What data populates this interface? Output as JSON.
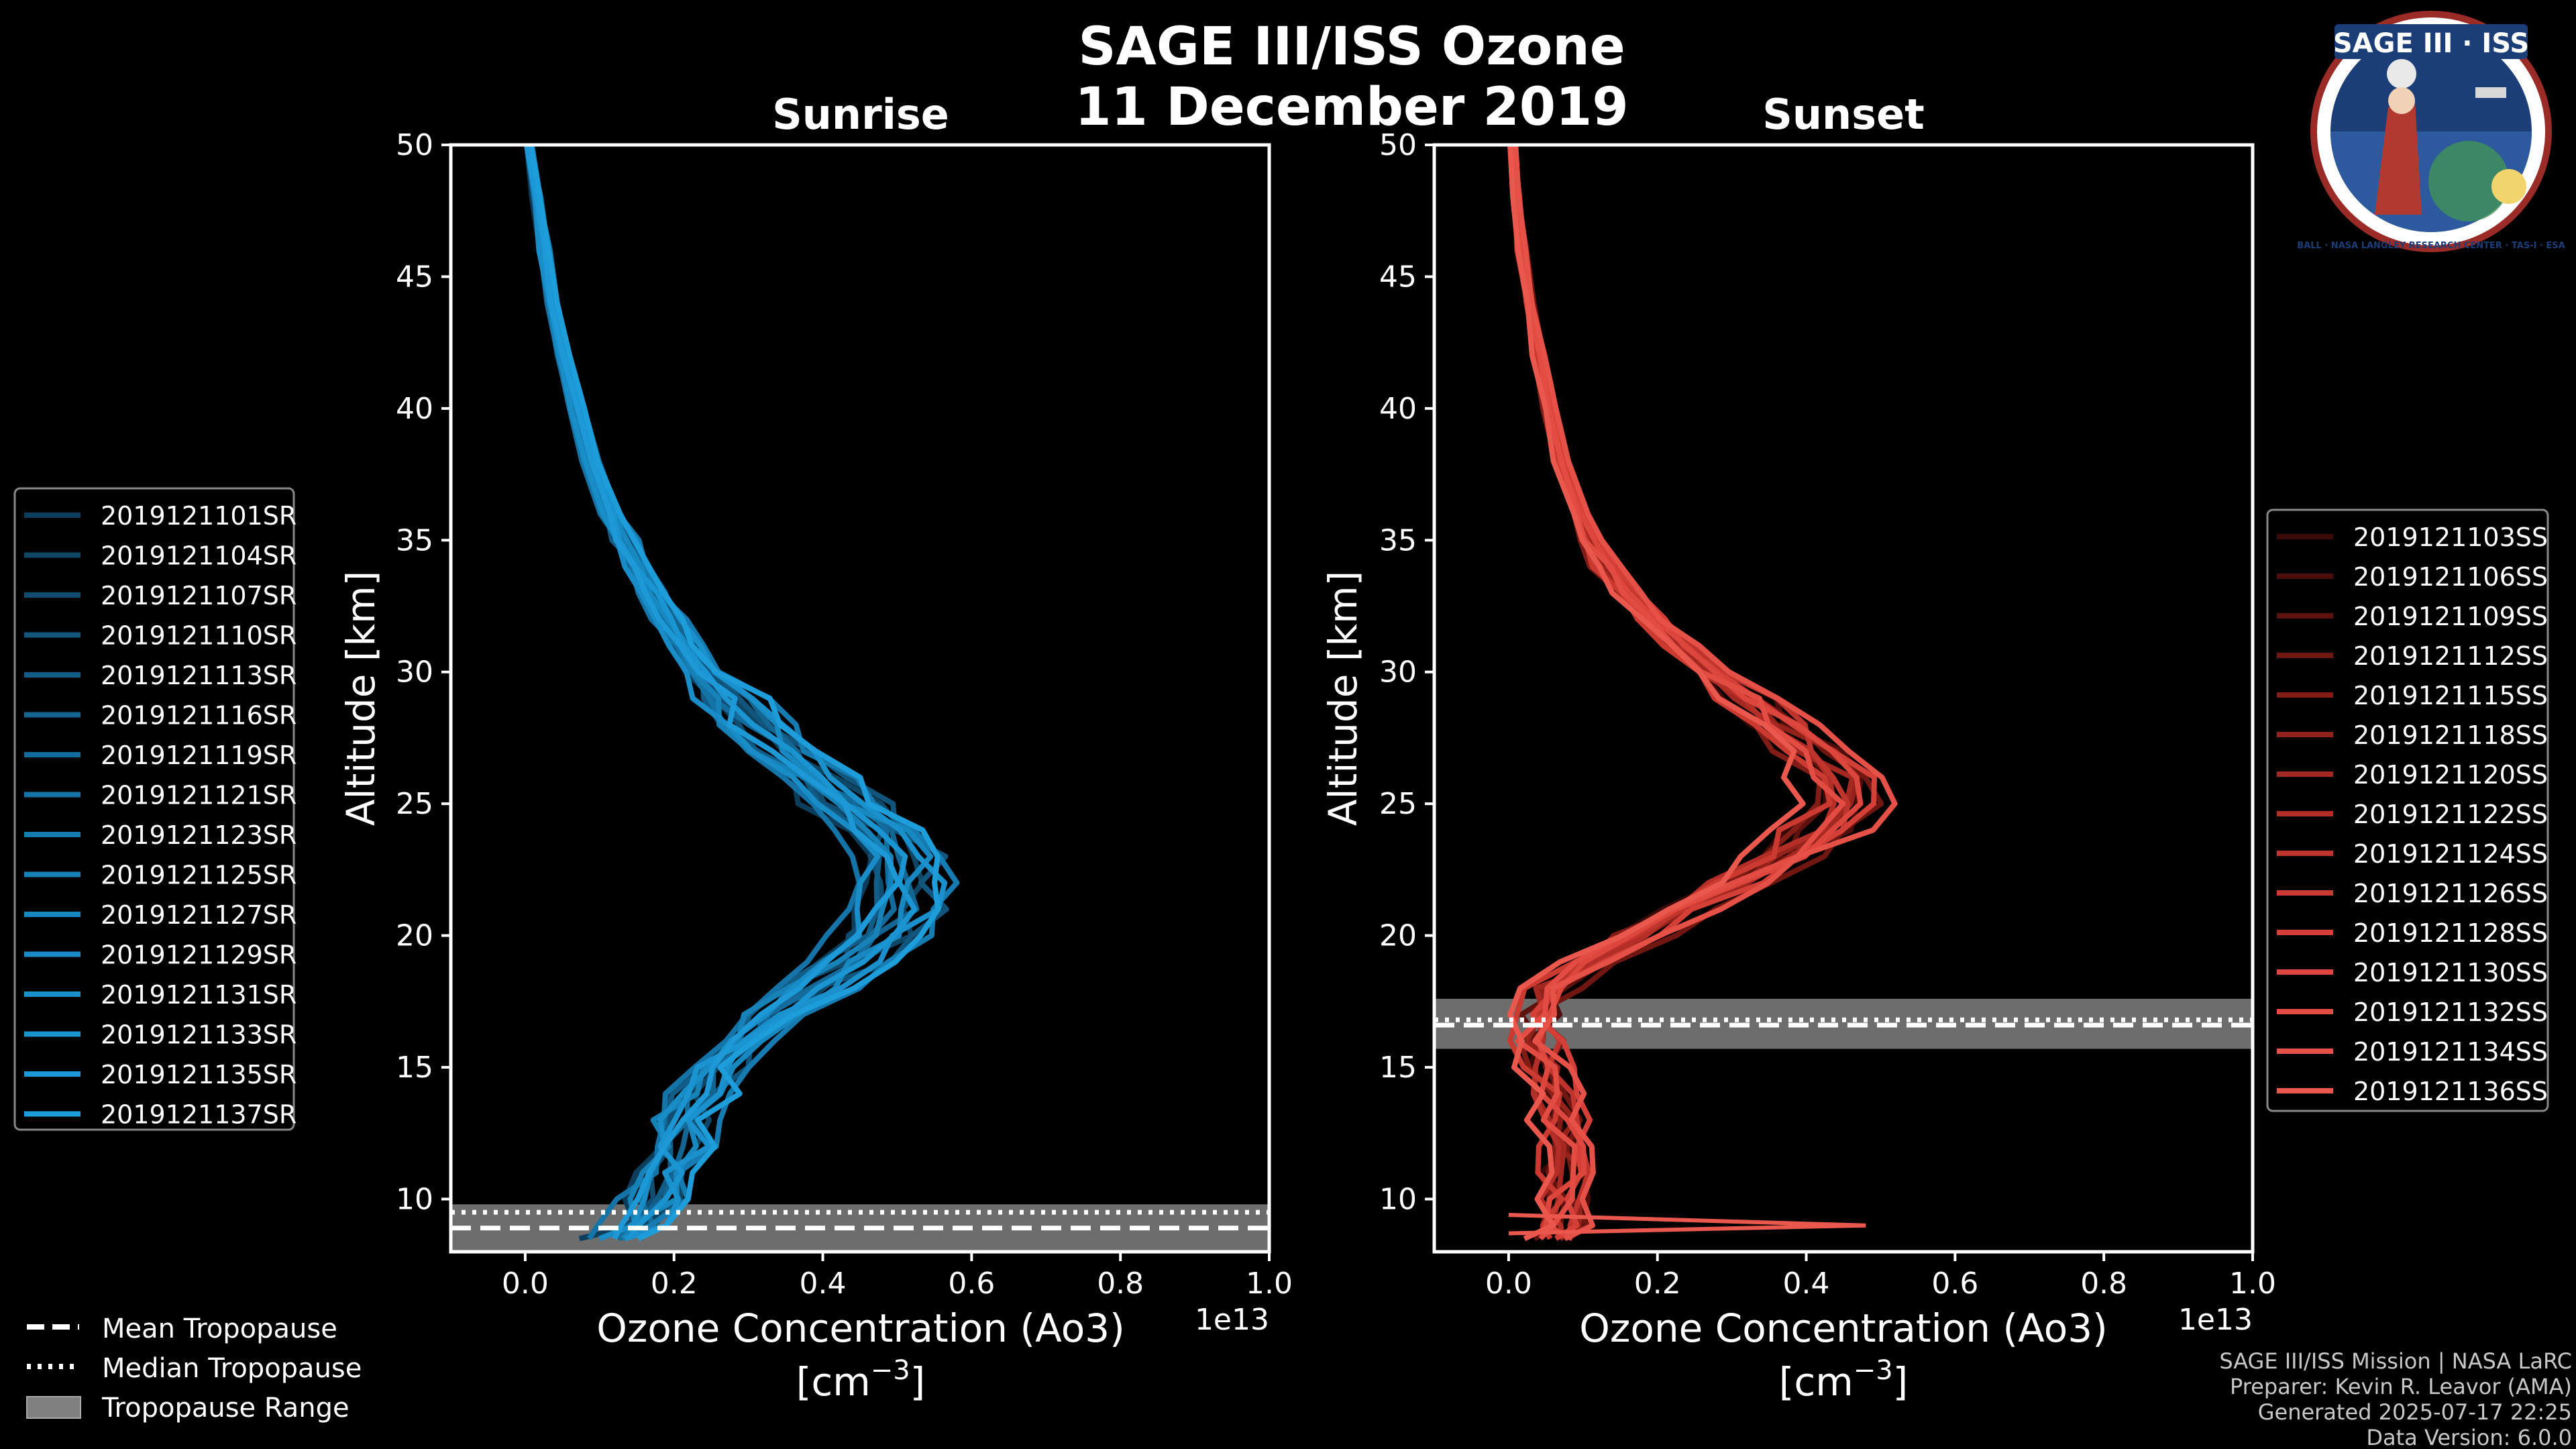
{
  "title": "SAGE III/ISS Ozone",
  "subtitle": "11 December 2019",
  "logo": {
    "name": "SAGE III · ISS",
    "ring_text": "BALL · NASA LANGLEY RESEARCH CENTER · TAS-I · ESA"
  },
  "footer": {
    "line1": "SAGE III/ISS Mission | NASA LaRC",
    "line2": "Preparer: Kevin R. Leavor (AMA)",
    "line3": "Generated 2025-07-17 22:25",
    "line4": "Data Version: 6.0.0"
  },
  "trop_legend": {
    "mean": "Mean Tropopause",
    "median": "Median Tropopause",
    "range": "Tropopause Range"
  },
  "colors": {
    "sunrise": "#1f8fd4",
    "sunset": "#e8564a",
    "trop_band": "#808080"
  },
  "chart_data": [
    {
      "type": "line",
      "panel": "sunrise",
      "title": "Sunrise",
      "xlabel": "Ozone Concentration (Ao3)",
      "xunits": "[cm",
      "xunits_exp": "−3",
      "xunits_close": "]",
      "ylabel": "Altitude [km]",
      "xlim": [
        -0.1,
        1.0
      ],
      "ylim": [
        8,
        50
      ],
      "x_offset_label": "1e13",
      "xticks": [
        0.0,
        0.2,
        0.4,
        0.6,
        0.8,
        1.0
      ],
      "xtick_labels": [
        "0.0",
        "0.2",
        "0.4",
        "0.6",
        "0.8",
        "1.0"
      ],
      "yticks": [
        10,
        15,
        20,
        25,
        30,
        35,
        40,
        45,
        50
      ],
      "ytick_labels": [
        "10",
        "15",
        "20",
        "25",
        "30",
        "35",
        "40",
        "45",
        "50"
      ],
      "tropopause": {
        "mean": 8.9,
        "median": 9.5,
        "range": [
          8.0,
          9.8
        ]
      },
      "profile_alt": [
        8.5,
        9,
        10,
        11,
        12,
        13,
        14,
        15,
        16,
        17,
        18,
        19,
        20,
        21,
        22,
        23,
        24,
        25,
        26,
        27,
        28,
        29,
        30,
        31,
        32,
        33,
        34,
        35,
        36,
        38,
        40,
        42,
        44,
        46,
        48,
        50
      ],
      "profile_base": [
        0.12,
        0.15,
        0.17,
        0.19,
        0.2,
        0.21,
        0.23,
        0.25,
        0.29,
        0.33,
        0.38,
        0.43,
        0.47,
        0.5,
        0.51,
        0.5,
        0.47,
        0.43,
        0.39,
        0.34,
        0.3,
        0.27,
        0.24,
        0.215,
        0.19,
        0.17,
        0.15,
        0.13,
        0.115,
        0.09,
        0.07,
        0.05,
        0.035,
        0.025,
        0.015,
        0.005
      ],
      "series": [
        {
          "name": "2019121101SR",
          "color": "#0d3d5c",
          "offset": -0.03
        },
        {
          "name": "2019121104SR",
          "color": "#0f4666",
          "offset": 0.02
        },
        {
          "name": "2019121107SR",
          "color": "#104d71",
          "offset": -0.01
        },
        {
          "name": "2019121110SR",
          "color": "#11557c",
          "offset": 0.03
        },
        {
          "name": "2019121113SR",
          "color": "#125d87",
          "offset": -0.02
        },
        {
          "name": "2019121116SR",
          "color": "#136592",
          "offset": 0.01
        },
        {
          "name": "2019121119SR",
          "color": "#146c9c",
          "offset": 0.0
        },
        {
          "name": "2019121121SR",
          "color": "#1574a7",
          "offset": -0.04
        },
        {
          "name": "2019121123SR",
          "color": "#167bb0",
          "offset": 0.04
        },
        {
          "name": "2019121125SR",
          "color": "#1782b8",
          "offset": -0.015
        },
        {
          "name": "2019121127SR",
          "color": "#1888c0",
          "offset": 0.015
        },
        {
          "name": "2019121129SR",
          "color": "#198dc7",
          "offset": -0.025
        },
        {
          "name": "2019121131SR",
          "color": "#1a91cc",
          "offset": 0.025
        },
        {
          "name": "2019121133SR",
          "color": "#1b95d1",
          "offset": 0.005
        },
        {
          "name": "2019121135SR",
          "color": "#1c99d6",
          "offset": -0.005
        },
        {
          "name": "2019121137SR",
          "color": "#1e9ddb",
          "offset": 0.035
        }
      ]
    },
    {
      "type": "line",
      "panel": "sunset",
      "title": "Sunset",
      "xlabel": "Ozone Concentration (Ao3)",
      "xunits": "[cm",
      "xunits_exp": "−3",
      "xunits_close": "]",
      "ylabel": "Altitude [km]",
      "xlim": [
        -0.1,
        1.0
      ],
      "ylim": [
        8,
        50
      ],
      "x_offset_label": "1e13",
      "xticks": [
        0.0,
        0.2,
        0.4,
        0.6,
        0.8,
        1.0
      ],
      "xtick_labels": [
        "0.0",
        "0.2",
        "0.4",
        "0.6",
        "0.8",
        "1.0"
      ],
      "yticks": [
        10,
        15,
        20,
        25,
        30,
        35,
        40,
        45,
        50
      ],
      "ytick_labels": [
        "10",
        "15",
        "20",
        "25",
        "30",
        "35",
        "40",
        "45",
        "50"
      ],
      "tropopause": {
        "mean": 16.6,
        "median": 16.8,
        "range": [
          15.7,
          17.6
        ]
      },
      "profile_alt": [
        8.5,
        9,
        10,
        11,
        12,
        13,
        14,
        15,
        16,
        17,
        18,
        19,
        20,
        21,
        22,
        23,
        24,
        25,
        26,
        27,
        28,
        29,
        30,
        31,
        32,
        33,
        34,
        35,
        36,
        38,
        40,
        42,
        44,
        46,
        48,
        50
      ],
      "profile_base": [
        0.06,
        0.07,
        0.07,
        0.08,
        0.08,
        0.07,
        0.06,
        0.05,
        0.04,
        0.04,
        0.06,
        0.11,
        0.18,
        0.24,
        0.31,
        0.37,
        0.42,
        0.45,
        0.44,
        0.41,
        0.37,
        0.32,
        0.27,
        0.23,
        0.19,
        0.16,
        0.13,
        0.11,
        0.095,
        0.07,
        0.055,
        0.04,
        0.028,
        0.018,
        0.01,
        0.003
      ],
      "spike": {
        "alt": 9.0,
        "value": 0.48
      },
      "series": [
        {
          "name": "2019121103SS",
          "color": "#3a0a08",
          "offset": -0.02
        },
        {
          "name": "2019121106SS",
          "color": "#4c0e0b",
          "offset": 0.02
        },
        {
          "name": "2019121109SS",
          "color": "#5e120e",
          "offset": -0.01
        },
        {
          "name": "2019121112SS",
          "color": "#701712",
          "offset": 0.03
        },
        {
          "name": "2019121115SS",
          "color": "#821c16",
          "offset": -0.03
        },
        {
          "name": "2019121118SS",
          "color": "#93221b",
          "offset": 0.01
        },
        {
          "name": "2019121120SS",
          "color": "#a32821",
          "offset": 0.0
        },
        {
          "name": "2019121122SS",
          "color": "#b22e26",
          "offset": -0.015
        },
        {
          "name": "2019121124SS",
          "color": "#bf342c",
          "offset": 0.015
        },
        {
          "name": "2019121126SS",
          "color": "#ca3a31",
          "offset": -0.025
        },
        {
          "name": "2019121128SS",
          "color": "#d44037",
          "offset": 0.025
        },
        {
          "name": "2019121130SS",
          "color": "#dc463c",
          "offset": 0.005
        },
        {
          "name": "2019121132SS",
          "color": "#e24c42",
          "offset": -0.005
        },
        {
          "name": "2019121134SS",
          "color": "#e65147",
          "offset": 0.035
        },
        {
          "name": "2019121136SS",
          "color": "#ea574d",
          "offset": -0.035
        }
      ]
    }
  ]
}
